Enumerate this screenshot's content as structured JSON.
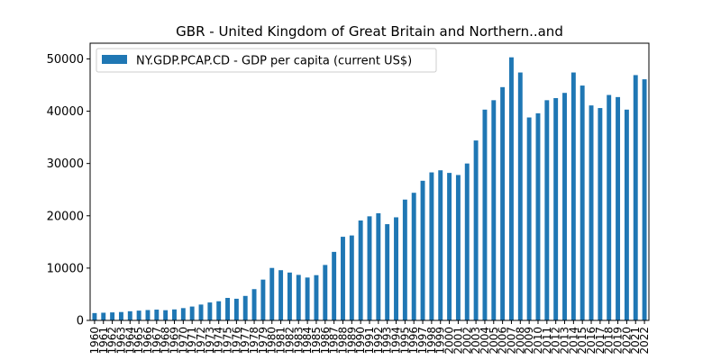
{
  "chart_data": {
    "type": "bar",
    "title": "GBR - United Kingdom of Great Britain and Northern..and",
    "xlabel": "",
    "ylabel": "",
    "ylim": [
      0,
      53000
    ],
    "yticks": [
      0,
      10000,
      20000,
      30000,
      40000,
      50000
    ],
    "grid": false,
    "legend_position": "top-left",
    "bar_color": "#1f77b4",
    "categories": [
      "1960",
      "1961",
      "1962",
      "1963",
      "1964",
      "1965",
      "1966",
      "1967",
      "1968",
      "1969",
      "1970",
      "1971",
      "1972",
      "1973",
      "1974",
      "1975",
      "1976",
      "1977",
      "1978",
      "1979",
      "1980",
      "1981",
      "1982",
      "1983",
      "1984",
      "1985",
      "1986",
      "1987",
      "1988",
      "1989",
      "1990",
      "1991",
      "1992",
      "1993",
      "1994",
      "1995",
      "1996",
      "1997",
      "1998",
      "1999",
      "2000",
      "2001",
      "2002",
      "2003",
      "2004",
      "2005",
      "2006",
      "2007",
      "2008",
      "2009",
      "2010",
      "2011",
      "2012",
      "2013",
      "2014",
      "2015",
      "2016",
      "2017",
      "2018",
      "2019",
      "2020",
      "2021",
      "2022"
    ],
    "series": [
      {
        "name": "NY.GDP.PCAP.CD - GDP per capita (current US$)",
        "values": [
          1400,
          1470,
          1530,
          1600,
          1750,
          1870,
          1980,
          2060,
          1950,
          2100,
          2350,
          2650,
          3030,
          3430,
          3660,
          4300,
          4140,
          4680,
          5980,
          7800,
          10030,
          9600,
          9150,
          8700,
          8200,
          8650,
          10600,
          13100,
          15990,
          16240,
          19100,
          19900,
          20490,
          18400,
          19710,
          23100,
          24400,
          26700,
          28300,
          28700,
          28200,
          27800,
          30000,
          34400,
          40300,
          42100,
          44600,
          50300,
          47400,
          38800,
          39600,
          42100,
          42500,
          43500,
          47400,
          44900,
          41100,
          40600,
          43100,
          42700,
          40300,
          46900,
          46100
        ]
      }
    ]
  }
}
